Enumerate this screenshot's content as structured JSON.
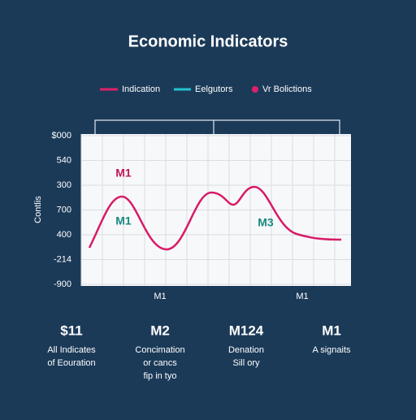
{
  "title": "Economic Indicators",
  "legend": [
    {
      "label": "Indication"
    },
    {
      "label": "Eelgutors"
    },
    {
      "label": "Vr Bolictions"
    }
  ],
  "y_axis_label": "Contlis",
  "y_labels": [
    "$000",
    "540",
    "300",
    "700",
    "400",
    "-214",
    "-900"
  ],
  "x_labels": [
    "M1",
    "M1"
  ],
  "annotations": [
    "M1",
    "M1",
    "M3"
  ],
  "stats": [
    {
      "value": "$11",
      "lines": [
        "All Indicates",
        "of Eouration"
      ]
    },
    {
      "value": "M2",
      "lines": [
        "Concimation",
        "or cancs",
        "fip in tyo"
      ]
    },
    {
      "value": "M124",
      "lines": [
        "Denation",
        "Sill ory"
      ]
    },
    {
      "value": "M1",
      "lines": [
        "A signaits"
      ]
    }
  ]
}
